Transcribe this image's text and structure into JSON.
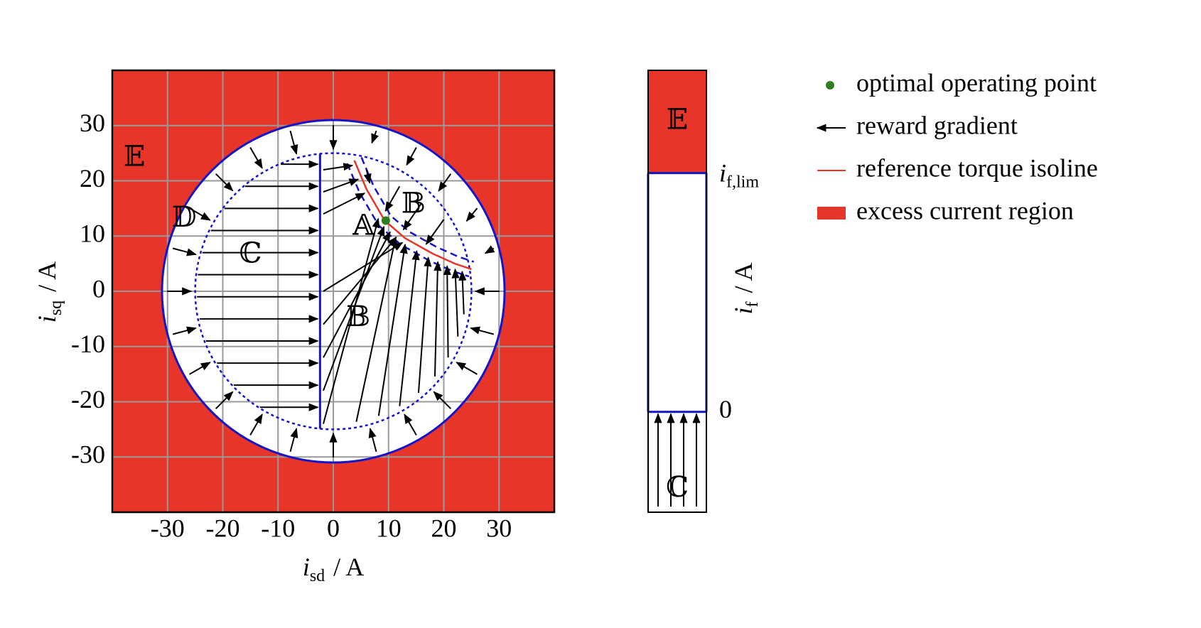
{
  "chart_data": [
    {
      "type": "current-plane",
      "xlabel": {
        "symbol": "i",
        "subscript": "sd",
        "unit": "/ A"
      },
      "ylabel": {
        "symbol": "i",
        "subscript": "sq",
        "unit": "/ A"
      },
      "xlim": [
        -40,
        40
      ],
      "ylim": [
        -40,
        40
      ],
      "xticks": [
        -30,
        -20,
        -10,
        0,
        10,
        20,
        30
      ],
      "yticks": [
        -30,
        -20,
        -10,
        0,
        10,
        20,
        30
      ],
      "grid": true,
      "current_limit_radius": 31,
      "inner_radius": 25,
      "boundary_x": -2.4,
      "optimal_point": {
        "x": 9.5,
        "y": 12.8,
        "color": "#2e7d1f"
      },
      "isoline": {
        "x": [
          3.8,
          6,
          9.3,
          13,
          18,
          22,
          25
        ],
        "y": [
          23.7,
          18.5,
          12.8,
          9.6,
          6.8,
          5,
          4
        ],
        "color": "#e8352a"
      },
      "region_color": "#e8352a",
      "boundary_color": "#1515c8",
      "regions": [
        "𝔼",
        "𝔻",
        "ℂ",
        "𝔸",
        "𝔹",
        "𝔹"
      ]
    },
    {
      "type": "field-bar",
      "ylabel": {
        "symbol": "i",
        "subscript": "f",
        "unit": "/ A"
      },
      "ylim": [
        -0.42,
        1.43
      ],
      "yticks": [
        0,
        {
          "value": 1,
          "label": "i",
          "subscript": "f,lim"
        }
      ],
      "region_color": "#e8352a",
      "boundary_color": "#1515c8",
      "regions": [
        "𝔼",
        "ℂ"
      ]
    },
    {
      "type": "legend",
      "items": [
        {
          "marker": "dot",
          "color": "#2e7d1f",
          "label": "optimal operating point"
        },
        {
          "marker": "arrow",
          "color": "#000000",
          "label": "reward gradient"
        },
        {
          "marker": "line",
          "color": "#e8352a",
          "label": "reference torque isoline"
        },
        {
          "marker": "patch",
          "color": "#e8352a",
          "label": "excess current region"
        }
      ]
    }
  ]
}
